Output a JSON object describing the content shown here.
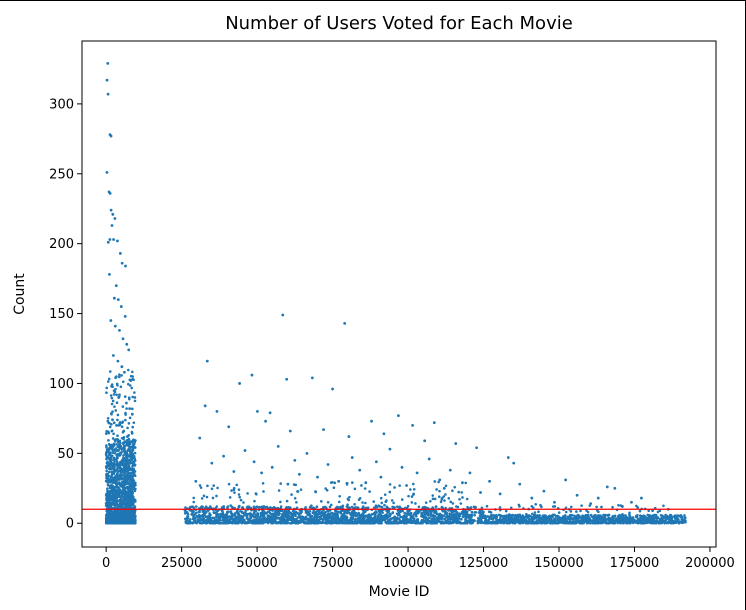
{
  "chart_data": {
    "type": "scatter",
    "title": "Number of Users Voted for Each Movie",
    "xlabel": "Movie ID",
    "ylabel": "Count",
    "xlim": [
      -8000,
      202000
    ],
    "ylim": [
      -17,
      345
    ],
    "xticks": [
      0,
      25000,
      50000,
      75000,
      100000,
      125000,
      150000,
      175000,
      200000
    ],
    "yticks": [
      0,
      50,
      100,
      150,
      200,
      250,
      300
    ],
    "grid": false,
    "legend": null,
    "marker_color": "#1f77b4",
    "threshold_line": {
      "y": 10,
      "color": "#ff0000"
    },
    "points": [
      [
        540,
        329
      ],
      [
        300,
        317
      ],
      [
        650,
        307
      ],
      [
        1270,
        278
      ],
      [
        1620,
        277
      ],
      [
        260,
        251
      ],
      [
        970,
        237
      ],
      [
        1320,
        236
      ],
      [
        1650,
        224
      ],
      [
        2200,
        221
      ],
      [
        2890,
        218
      ],
      [
        1930,
        213
      ],
      [
        1230,
        203
      ],
      [
        700,
        201
      ],
      [
        2460,
        203
      ],
      [
        3730,
        202
      ],
      [
        4700,
        193
      ],
      [
        5300,
        186
      ],
      [
        6420,
        184
      ],
      [
        1080,
        178
      ],
      [
        3350,
        170
      ],
      [
        2720,
        161
      ],
      [
        4020,
        160
      ],
      [
        5010,
        155
      ],
      [
        6310,
        148
      ],
      [
        1550,
        145
      ],
      [
        3020,
        141
      ],
      [
        4410,
        138
      ],
      [
        5590,
        132
      ],
      [
        6830,
        128
      ],
      [
        7470,
        124
      ],
      [
        2380,
        120
      ],
      [
        3890,
        116
      ],
      [
        5210,
        112
      ],
      [
        6040,
        108
      ],
      [
        8130,
        102
      ],
      [
        1800,
        98
      ],
      [
        2910,
        94
      ],
      [
        4150,
        90
      ],
      [
        6710,
        86
      ],
      [
        7780,
        82
      ],
      [
        8660,
        78
      ],
      [
        2100,
        74
      ],
      [
        3450,
        70
      ],
      [
        5830,
        66
      ],
      [
        7060,
        62
      ],
      [
        8420,
        58
      ],
      [
        1400,
        54
      ],
      [
        4800,
        50
      ],
      [
        6200,
        46
      ],
      [
        58500,
        149
      ],
      [
        79000,
        143
      ],
      [
        33500,
        116
      ],
      [
        48300,
        106
      ],
      [
        59800,
        103
      ],
      [
        68300,
        104
      ],
      [
        44200,
        100
      ],
      [
        75000,
        96
      ],
      [
        32800,
        84
      ],
      [
        36700,
        80
      ],
      [
        50100,
        80
      ],
      [
        54300,
        79
      ],
      [
        87900,
        73
      ],
      [
        96800,
        77
      ],
      [
        108700,
        72
      ],
      [
        31000,
        61
      ],
      [
        40600,
        69
      ],
      [
        52800,
        73
      ],
      [
        61000,
        66
      ],
      [
        72000,
        67
      ],
      [
        80400,
        62
      ],
      [
        92000,
        64
      ],
      [
        101500,
        70
      ],
      [
        105500,
        59
      ],
      [
        115800,
        57
      ],
      [
        122700,
        54
      ],
      [
        133200,
        47
      ],
      [
        135000,
        43
      ],
      [
        152200,
        31
      ],
      [
        166000,
        26
      ],
      [
        168500,
        25
      ],
      [
        177300,
        18
      ],
      [
        186200,
        10
      ],
      [
        191800,
        4
      ],
      [
        29700,
        30
      ],
      [
        35000,
        43
      ],
      [
        38900,
        48
      ],
      [
        42300,
        37
      ],
      [
        46000,
        52
      ],
      [
        49000,
        44
      ],
      [
        51500,
        36
      ],
      [
        55000,
        40
      ],
      [
        57000,
        55
      ],
      [
        60200,
        28
      ],
      [
        62500,
        45
      ],
      [
        64000,
        35
      ],
      [
        66500,
        50
      ],
      [
        70000,
        33
      ],
      [
        73500,
        42
      ],
      [
        77000,
        30
      ],
      [
        81500,
        47
      ],
      [
        84000,
        38
      ],
      [
        86000,
        29
      ],
      [
        89500,
        44
      ],
      [
        91000,
        33
      ],
      [
        94000,
        53
      ],
      [
        98000,
        40
      ],
      [
        99500,
        27
      ],
      [
        103000,
        36
      ],
      [
        107000,
        46
      ],
      [
        110500,
        31
      ],
      [
        112000,
        25
      ],
      [
        114000,
        38
      ],
      [
        118000,
        29
      ],
      [
        120500,
        36
      ],
      [
        124000,
        22
      ],
      [
        127000,
        30
      ],
      [
        130500,
        21
      ],
      [
        137000,
        28
      ],
      [
        141000,
        18
      ],
      [
        145000,
        23
      ],
      [
        148500,
        15
      ],
      [
        156000,
        20
      ],
      [
        160500,
        14
      ],
      [
        163000,
        18
      ],
      [
        171000,
        12
      ],
      [
        174000,
        15
      ],
      [
        181000,
        9
      ]
    ]
  }
}
